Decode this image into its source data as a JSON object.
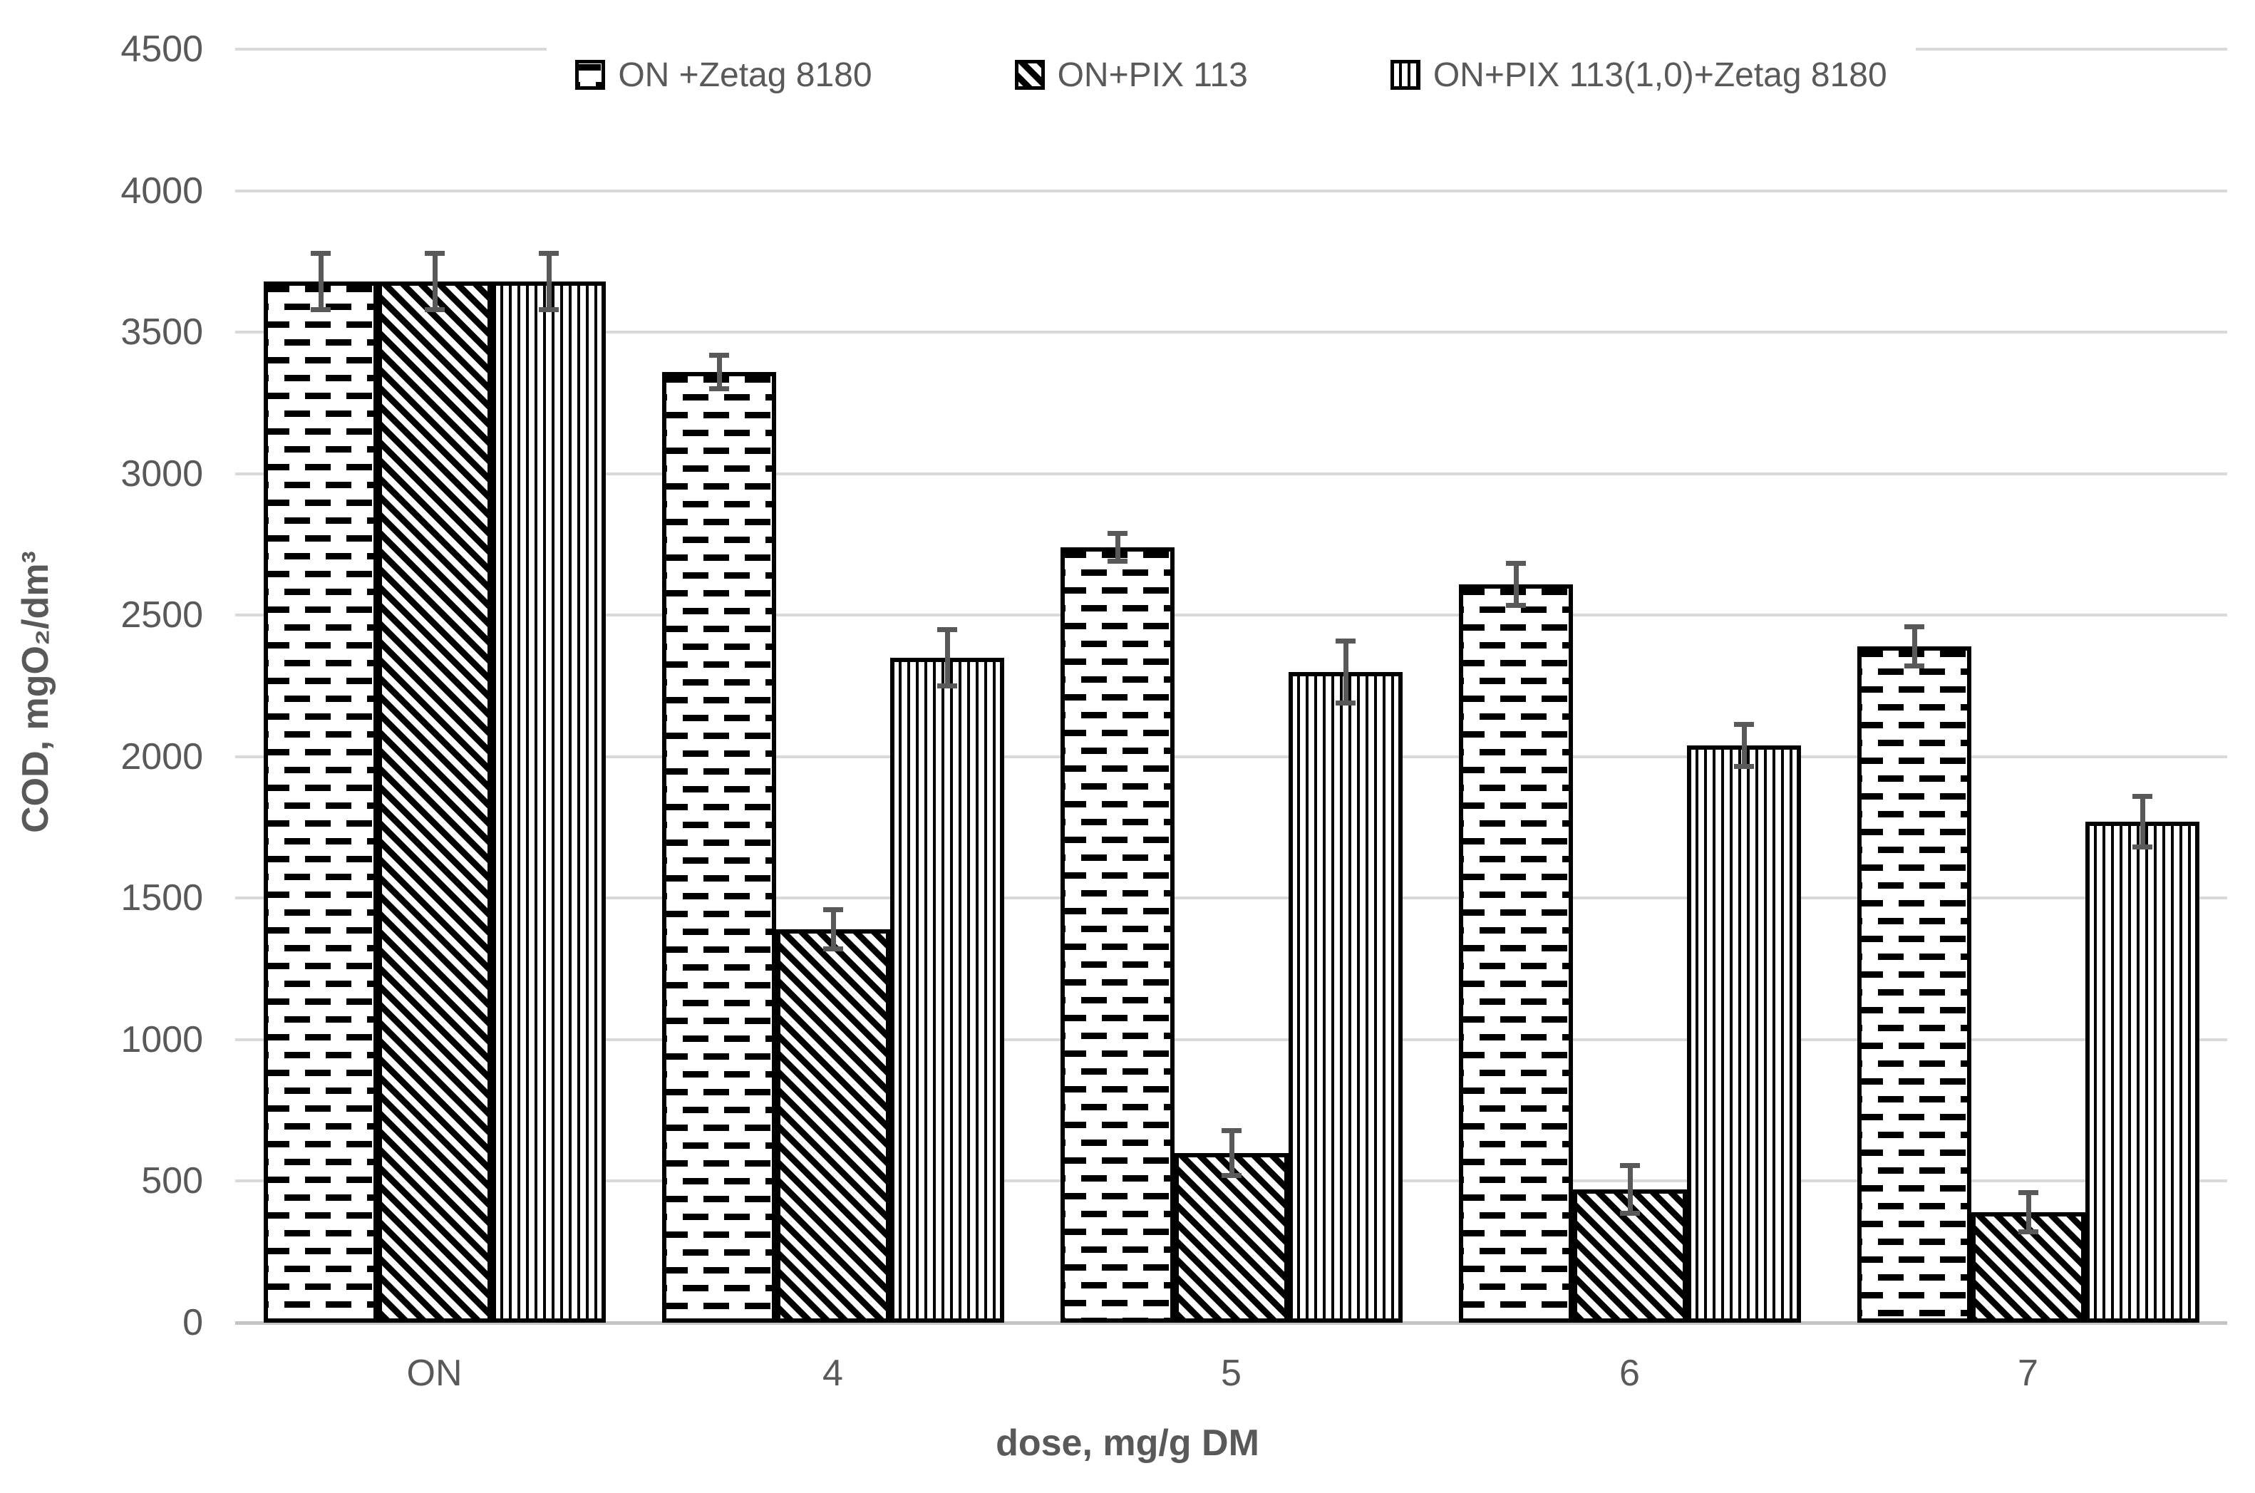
{
  "chart_data": {
    "type": "bar",
    "title": "",
    "categories": [
      "ON",
      "4",
      "5",
      "6",
      "7"
    ],
    "series": [
      {
        "name": "ON +Zetag 8180",
        "pattern": "horizontal-dashes",
        "values": [
          3680,
          3360,
          2740,
          2610,
          2390
        ],
        "errors": [
          100,
          60,
          50,
          75,
          70
        ]
      },
      {
        "name": "ON+PIX 113",
        "pattern": "diagonal-hatch",
        "values": [
          3680,
          1390,
          600,
          470,
          390
        ],
        "errors": [
          100,
          70,
          80,
          85,
          70
        ]
      },
      {
        "name": "ON+PIX 113(1,0)+Zetag 8180",
        "pattern": "vertical-lines",
        "values": [
          3680,
          2350,
          2300,
          2040,
          1770
        ],
        "errors": [
          100,
          100,
          110,
          75,
          90
        ]
      }
    ],
    "xlabel": "dose, mg/g DM",
    "ylabel": "COD, mgO₂/dm³",
    "ylim": [
      0,
      4500
    ],
    "ytick_step": 500,
    "yticks": [
      "0",
      "500",
      "1000",
      "1500",
      "2000",
      "2500",
      "3000",
      "3500",
      "4000",
      "4500"
    ],
    "grid": "horizontal",
    "legend_position": "top",
    "bar_style": "white fill with black pattern hatching, black outline, gray error bars",
    "colors": {
      "bar_fill": "#ffffff",
      "bar_stroke": "#000000",
      "error_bar": "#595959",
      "gridline": "#d9d9d9",
      "axis_line": "#c4c4c4",
      "text": "#595959"
    }
  }
}
